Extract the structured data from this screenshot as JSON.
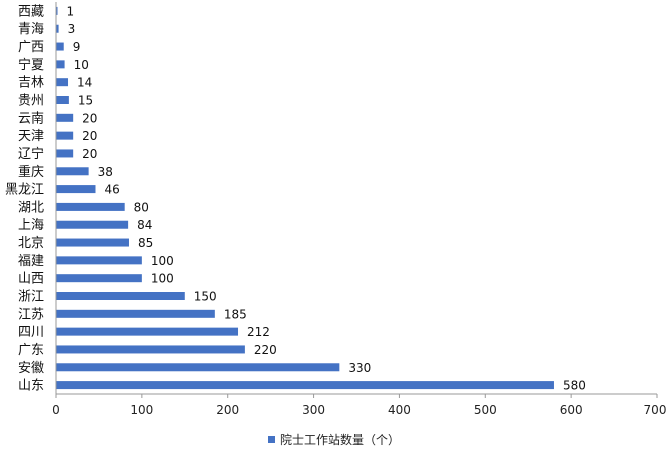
{
  "chart_data": {
    "type": "bar",
    "orientation": "horizontal",
    "categories": [
      "西藏",
      "青海",
      "广西",
      "宁夏",
      "吉林",
      "贵州",
      "云南",
      "天津",
      "辽宁",
      "重庆",
      "黑龙江",
      "湖北",
      "上海",
      "北京",
      "福建",
      "山西",
      "浙江",
      "江苏",
      "四川",
      "广东",
      "安徽",
      "山东"
    ],
    "series": [
      {
        "name": "院士工作站数量（个）",
        "values": [
          1,
          3,
          9,
          10,
          14,
          15,
          20,
          20,
          20,
          38,
          46,
          80,
          84,
          85,
          100,
          100,
          150,
          185,
          212,
          220,
          330,
          580
        ]
      }
    ],
    "xlim": [
      0,
      700
    ],
    "xticks": [
      0,
      100,
      200,
      300,
      400,
      500,
      600,
      700
    ],
    "grid": false,
    "legend_position": "bottom",
    "colors": {
      "bar": "#4472C4",
      "axis": "#999999"
    }
  }
}
